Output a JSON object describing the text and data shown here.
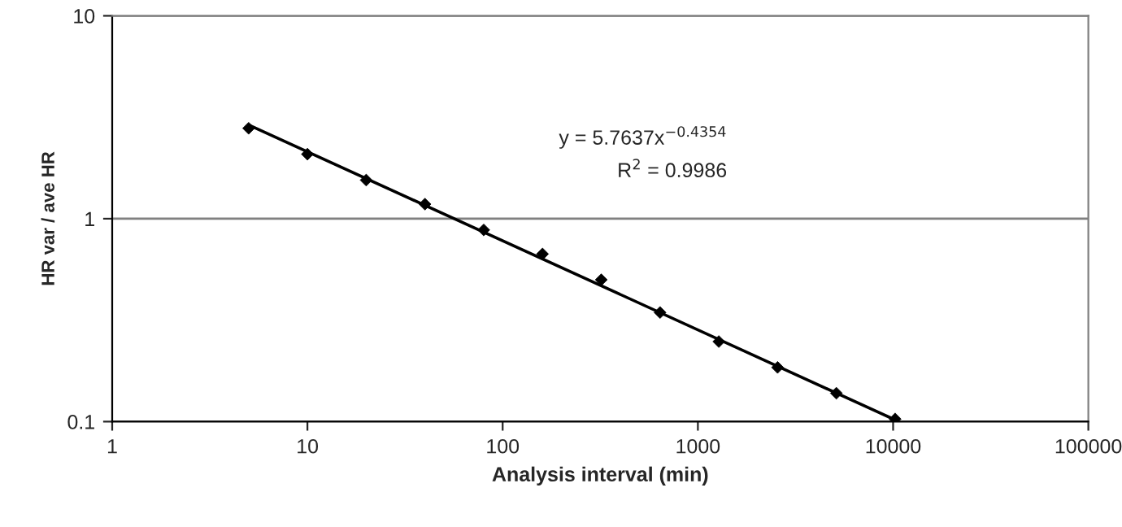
{
  "chart_data": {
    "type": "scatter",
    "xlabel": "Analysis interval (min)",
    "ylabel": "HR var / ave HR",
    "log": "xy",
    "xlim": [
      1,
      100000
    ],
    "xticks": [
      1,
      10,
      100,
      1000,
      10000,
      100000
    ],
    "ylim": [
      0.1,
      10
    ],
    "yticks": [
      0.1,
      1,
      10
    ],
    "grid": "y",
    "marker": "diamond",
    "series": [
      {
        "color": "#000000",
        "x": [
          5,
          10,
          20,
          40,
          80,
          160,
          320,
          640,
          1280,
          2560,
          5120,
          10240
        ],
        "values": [
          2.79,
          2.08,
          1.55,
          1.18,
          0.88,
          0.67,
          0.5,
          0.345,
          0.248,
          0.185,
          0.138,
          0.103
        ]
      },
      {
        "type": "line",
        "color": "#000000",
        "marker": "none",
        "line_style": "solid",
        "x": [
          5,
          10240
        ],
        "values": [
          2.9,
          0.102
        ]
      }
    ],
    "annotations": [
      "y = 5.7637x$^{−0.4354}$",
      "R$^{2}$ = 0.9986"
    ]
  }
}
